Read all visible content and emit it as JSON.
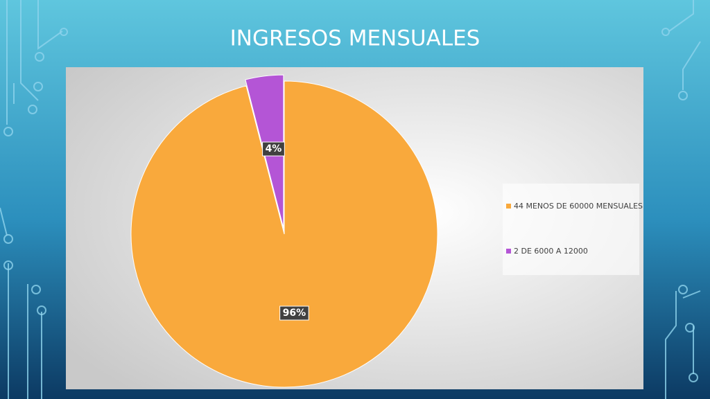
{
  "chart_data": {
    "type": "pie",
    "title": "INGRESOS MENSUALES",
    "categories": [
      "44 MENOS DE 60000 MENSUALES",
      "2 DE 6000 A 12000"
    ],
    "values": [
      96,
      4
    ],
    "value_labels": [
      "96%",
      "4%"
    ],
    "colors": [
      "#f9a93c",
      "#b455d6"
    ],
    "legend": "right"
  }
}
